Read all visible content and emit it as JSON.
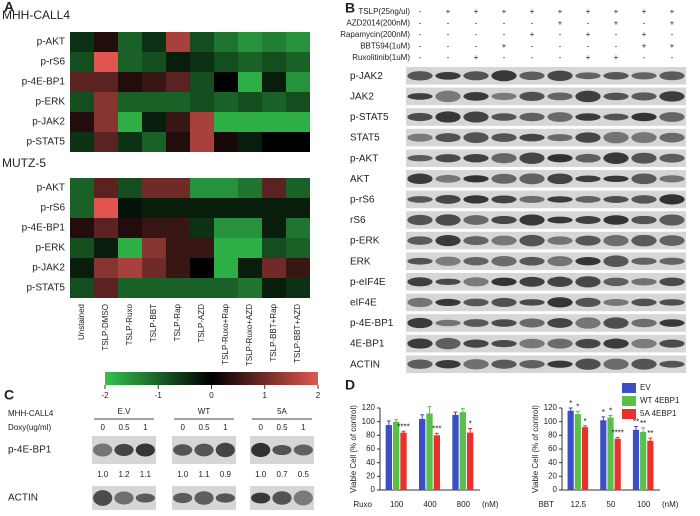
{
  "panel_labels": [
    "A",
    "B",
    "C",
    "D"
  ],
  "colorbar": {
    "lim": [
      -2,
      2
    ],
    "ticks": [
      -2,
      -1,
      0,
      1,
      2
    ],
    "colors": [
      "#33c24e",
      "#000000",
      "#e0564f"
    ]
  },
  "chart_data": [
    {
      "type": "heatmap",
      "title": "MHH-CALL4",
      "rows": [
        "p-AKT",
        "p-rS6",
        "p-4E-BP1",
        "p-ERK",
        "p-JAK2",
        "p-STAT5"
      ],
      "values": [
        [
          -0.5,
          0.3,
          -1,
          -0.5,
          1.5,
          -0.8,
          -1.2,
          -1.5,
          -1.3,
          -1.5
        ],
        [
          -0.8,
          2,
          -1,
          -0.8,
          -0.3,
          -0.5,
          -0.8,
          -1,
          -0.8,
          -1
        ],
        [
          0.8,
          0.8,
          0.3,
          0.5,
          0.8,
          -0.8,
          0,
          -1.8,
          -0.3,
          -1.5
        ],
        [
          -0.8,
          1.2,
          -1,
          -1,
          -1,
          -0.8,
          -1,
          -0.8,
          -1,
          -0.8
        ],
        [
          0.3,
          1.2,
          -1.8,
          -0.3,
          0.5,
          1.5,
          -1.8,
          -1.8,
          -1.8,
          -1.8
        ],
        [
          -0.5,
          0.8,
          -0.5,
          -1,
          0.3,
          1.5,
          0.2,
          -0.3,
          0,
          0
        ]
      ]
    },
    {
      "type": "heatmap",
      "title": "MUTZ-5",
      "rows": [
        "p-AKT",
        "p-rS6",
        "p-4E-BP1",
        "p-ERK",
        "p-JAK2",
        "p-STAT5"
      ],
      "columns": [
        "Unstained",
        "TSLP-DMSO",
        "TSLP-Ruxo",
        "TSLP-BBT",
        "TSLP-Rap",
        "TSLP-AZD",
        "TSLP-Ruxo+Rap",
        "TSLP-Ruxo+AZD",
        "TSLP-BBT+Rap",
        "TSLP-BBT+AZD"
      ],
      "values": [
        [
          -1,
          0.8,
          -0.8,
          1,
          1,
          -1.5,
          -1.5,
          -1.2,
          0.8,
          -1
        ],
        [
          -1,
          2,
          -0.2,
          -0.3,
          -0.3,
          -0.3,
          -0.3,
          -0.3,
          -0.3,
          -0.3
        ],
        [
          0.3,
          0.8,
          0.3,
          0.5,
          0.5,
          -0.5,
          -1.5,
          -1.5,
          -0.3,
          -1.2
        ],
        [
          -0.8,
          -0.3,
          -1.8,
          1.2,
          0.5,
          0.5,
          -1.8,
          -1.8,
          -0.8,
          -1
        ],
        [
          -0.3,
          1.2,
          1.5,
          1,
          0.5,
          0,
          -1.8,
          -0.3,
          1,
          0.5
        ],
        [
          -0.8,
          0.8,
          -1,
          -1,
          -1,
          -1,
          -1,
          -1.2,
          -0.3,
          -0.5
        ]
      ]
    },
    {
      "type": "bar",
      "x_prefix": "Ruxo",
      "x_unit": "(nM)",
      "y_label": "Viable Cell (% of control)",
      "categories": [
        "100",
        "400",
        "800"
      ],
      "ylim": [
        0,
        120
      ],
      "yticks": [
        0,
        20,
        40,
        60,
        80,
        100,
        120
      ],
      "series": [
        {
          "color": "#3a4fc4",
          "values": [
            95,
            104,
            110
          ],
          "errors": [
            6,
            6,
            4
          ],
          "annotations": [
            null,
            null,
            null
          ]
        },
        {
          "color": "#5bc04a",
          "values": [
            100,
            112,
            114
          ],
          "errors": [
            3,
            10,
            5
          ],
          "annotations": [
            null,
            null,
            null
          ]
        },
        {
          "color": "#e8322e",
          "values": [
            84,
            80,
            84
          ],
          "errors": [
            2,
            3,
            6
          ],
          "annotations": [
            "****",
            "***",
            "*"
          ]
        }
      ]
    },
    {
      "type": "bar",
      "x_prefix": "BBT",
      "x_unit": "(nM)",
      "y_label": "Viable Cell (% of control)",
      "categories": [
        "12.5",
        "50",
        "100"
      ],
      "ylim": [
        0,
        120
      ],
      "yticks": [
        0,
        20,
        40,
        60,
        80,
        100,
        120
      ],
      "series": [
        {
          "name": "EV",
          "color": "#3a4fc4",
          "values": [
            116,
            102,
            88
          ],
          "errors": [
            4,
            5,
            5
          ],
          "annotations": [
            "*",
            "*",
            "**"
          ]
        },
        {
          "name": "WT 4EBP1",
          "color": "#5bc04a",
          "values": [
            111,
            106,
            85
          ],
          "errors": [
            4,
            3,
            6
          ],
          "annotations": [
            "*",
            "*",
            "**"
          ]
        },
        {
          "name": "5A 4EBP1",
          "color": "#e8322e",
          "values": [
            92,
            75,
            72
          ],
          "errors": [
            2,
            2,
            4
          ],
          "annotations": [
            "*",
            "****",
            "**"
          ]
        }
      ]
    }
  ],
  "blot_b": {
    "treatments": [
      {
        "name": "TSLP(25ng/ul)",
        "signs": [
          "-",
          "+",
          "+",
          "+",
          "+",
          "+",
          "+",
          "+",
          "+",
          "+"
        ]
      },
      {
        "name": "AZD2014(200nM)",
        "signs": [
          "-",
          "-",
          "-",
          "-",
          "-",
          "+",
          "-",
          "+",
          "-",
          "+"
        ]
      },
      {
        "name": "Rapamycin(200nM)",
        "signs": [
          "-",
          "-",
          "-",
          "-",
          "+",
          "-",
          "+",
          "-",
          "+",
          "-"
        ]
      },
      {
        "name": "BBT594(1uM)",
        "signs": [
          "-",
          "-",
          "-",
          "+",
          "-",
          "-",
          "-",
          "-",
          "+",
          "+"
        ]
      },
      {
        "name": "Ruxolitinib(1uM)",
        "signs": [
          "-",
          "-",
          "+",
          "-",
          "-",
          "-",
          "+",
          "+",
          "-",
          "-"
        ]
      }
    ],
    "bands": [
      "p-JAK2",
      "JAK2",
      "p-STAT5",
      "STAT5",
      "p-AKT",
      "AKT",
      "p-rS6",
      "rS6",
      "p-ERK",
      "ERK",
      "p-eIF4E",
      "eIF4E",
      "p-4E-BP1",
      "4E-BP1",
      "ACTIN"
    ]
  },
  "blot_c": {
    "cell_line": "MHH-CALL4",
    "dose_label": "Doxy(ug/ml)",
    "groups": [
      {
        "name": "E.V",
        "doses": [
          0,
          0.5,
          1
        ],
        "quant": [
          "1.0",
          "1.2",
          "1.1"
        ]
      },
      {
        "name": "WT",
        "doses": [
          0,
          0.5,
          1
        ],
        "quant": [
          "1.0",
          "1.1",
          "0.9"
        ]
      },
      {
        "name": "5A",
        "doses": [
          0,
          0.5,
          1
        ],
        "quant": [
          "1.0",
          "0.7",
          "0.5"
        ]
      }
    ],
    "bands": [
      "p-4E-BP1",
      "ACTIN"
    ]
  }
}
